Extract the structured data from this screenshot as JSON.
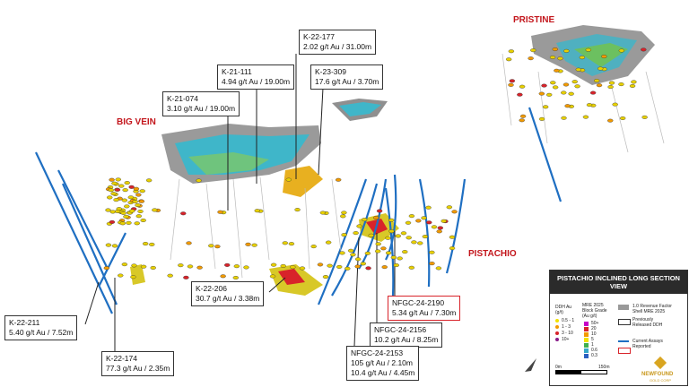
{
  "zones": [
    "PRISTINE",
    "BIG VEIN",
    "PISTACHIO"
  ],
  "callouts": [
    {
      "hole": "K-22-177",
      "lines": [
        "2.02 g/t Au / 31.00m"
      ]
    },
    {
      "hole": "K-21-111",
      "lines": [
        "4.94 g/t Au / 19.00m"
      ]
    },
    {
      "hole": "K-23-309",
      "lines": [
        "17.6 g/t Au / 3.70m"
      ]
    },
    {
      "hole": "K-21-074",
      "lines": [
        "3.10 g/t Au / 19.00m"
      ]
    },
    {
      "hole": "K-22-206",
      "lines": [
        "30.7 g/t Au / 3.38m"
      ]
    },
    {
      "hole": "NFGC-24-2190",
      "lines": [
        "5.34 g/t Au / 7.30m"
      ]
    },
    {
      "hole": "NFGC-24-2156",
      "lines": [
        "10.2 g/t Au / 8.25m"
      ]
    },
    {
      "hole": "NFGC-24-2153",
      "lines": [
        "105 g/t Au / 2.10m",
        "10.4 g/t Au / 4.45m"
      ]
    },
    {
      "hole": "K-22-211",
      "lines": [
        "5.40 g/t Au / 7.52m"
      ]
    },
    {
      "hole": "K-22-174",
      "lines": [
        "77.3 g/t Au / 2.35m"
      ]
    }
  ],
  "legend": {
    "title": "PISTACHIO INCLINED LONG SECTION VIEW",
    "ddh_title": "DDH Au (g/t)",
    "ddh_items": [
      "0.5 - 1",
      "1 - 3",
      "3 - 10",
      "10+"
    ],
    "block_title": "MRE 2025 Block Grade (Au g/t)",
    "block_items": [
      "50+",
      "20",
      "10",
      "5",
      "1",
      "0.6",
      "0.3"
    ],
    "shell": "1.0 Revenue Factor Shell MRE 2025",
    "previous": "Previously Released DDH",
    "current": "Current Assays Reported",
    "scale": [
      "0m",
      "150m"
    ],
    "logo": [
      "NEWFOUND",
      "GOLD CORP"
    ]
  }
}
